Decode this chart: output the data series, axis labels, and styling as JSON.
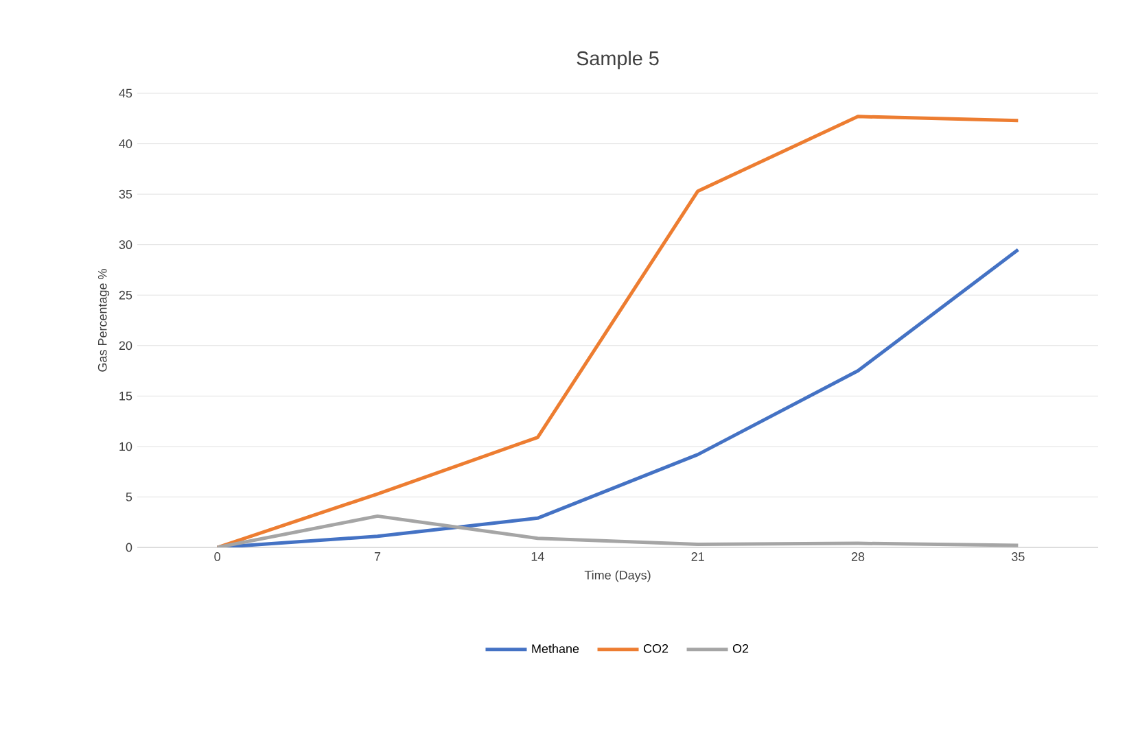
{
  "chart_data": {
    "type": "line",
    "title": "Sample 5",
    "xlabel": "Time (Days)",
    "ylabel": "Gas Percentage %",
    "categories": [
      "0",
      "7",
      "14",
      "21",
      "28",
      "35"
    ],
    "series": [
      {
        "name": "Methane",
        "color": "#4472c4",
        "values": [
          0,
          1.1,
          2.9,
          9.2,
          17.5,
          29.5
        ]
      },
      {
        "name": "CO2",
        "color": "#ed7d31",
        "values": [
          0,
          5.3,
          10.9,
          35.3,
          42.7,
          42.3
        ]
      },
      {
        "name": "O2",
        "color": "#a5a5a5",
        "values": [
          0,
          3.1,
          0.9,
          0.3,
          0.4,
          0.2
        ]
      }
    ],
    "ylim": [
      0,
      45
    ],
    "yticks": [
      0,
      5,
      10,
      15,
      20,
      25,
      30,
      35,
      40,
      45
    ],
    "grid": "y",
    "legend": "bottom",
    "marker": "none",
    "line_style": "solid"
  }
}
